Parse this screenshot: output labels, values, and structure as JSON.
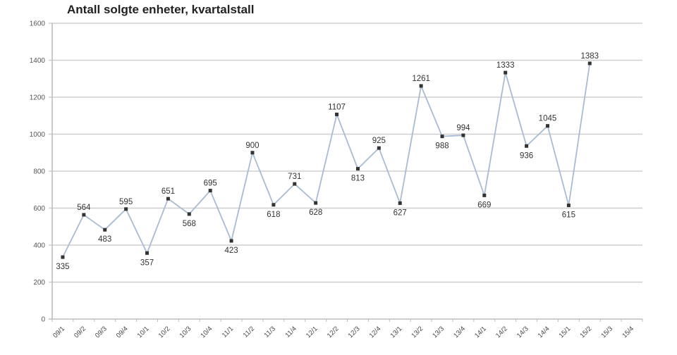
{
  "chart_data": {
    "type": "line",
    "title": "Antall solgte enheter, kvartalstall",
    "xlabel": "",
    "ylabel": "",
    "ylim": [
      0,
      1600
    ],
    "yticks": [
      0,
      200,
      400,
      600,
      800,
      1000,
      1200,
      1400,
      1600
    ],
    "grid": true,
    "legend": "none",
    "categories": [
      "09/1",
      "09/2",
      "09/3",
      "09/4",
      "10/1",
      "10/2",
      "10/3",
      "10/4",
      "11/1",
      "11/2",
      "11/3",
      "11/4",
      "12/1",
      "12/2",
      "12/3",
      "12/4",
      "13/1",
      "13/2",
      "13/3",
      "13/4",
      "14/1",
      "14/2",
      "14/3",
      "14/4",
      "15/1",
      "15/2",
      "15/3",
      "15/4"
    ],
    "series": [
      {
        "name": "Antall solgte enheter",
        "values": [
          335,
          564,
          483,
          595,
          357,
          651,
          568,
          695,
          423,
          900,
          618,
          731,
          628,
          1107,
          813,
          925,
          627,
          1261,
          988,
          994,
          669,
          1333,
          936,
          1045,
          615,
          1383
        ],
        "label_positions": [
          "below",
          "above",
          "below",
          "above",
          "below",
          "above",
          "below",
          "above",
          "below",
          "above",
          "below",
          "above",
          "below",
          "above",
          "below",
          "above",
          "below",
          "above",
          "below",
          "above",
          "below",
          "above",
          "below",
          "above",
          "below",
          "above"
        ]
      }
    ]
  },
  "colors": {
    "line": "#a9bbd3",
    "marker": "#333333",
    "grid": "#cfcfcf",
    "axis": "#bdbdbd"
  }
}
